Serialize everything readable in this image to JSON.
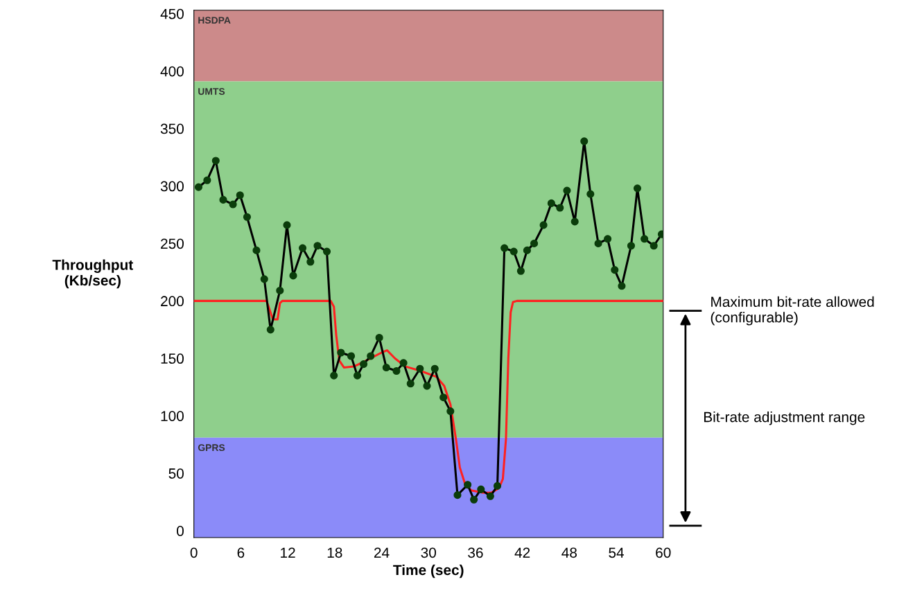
{
  "chart_data": {
    "type": "line",
    "xlabel": "Time (sec)",
    "ylabel": "Throughput\n(Kb/sec)",
    "xlim": [
      0,
      60
    ],
    "xticks": [
      0,
      6,
      12,
      18,
      24,
      30,
      36,
      42,
      48,
      54,
      60
    ],
    "ylim": [
      -6,
      453
    ],
    "yticks": [
      0,
      50,
      100,
      150,
      200,
      250,
      300,
      350,
      400,
      450
    ],
    "grid": false,
    "bands": [
      {
        "axis": "y",
        "from": 391,
        "to": 453,
        "label": "HSDPA",
        "color": "#cc8a8a"
      },
      {
        "axis": "y",
        "from": 81,
        "to": 391,
        "label": "UMTS",
        "color": "#8fcf8c"
      },
      {
        "axis": "y",
        "from": -6,
        "to": 81,
        "label": "GPRS",
        "color": "#8b8bf9"
      }
    ],
    "series": [
      {
        "color": "#000000",
        "marker": "circle",
        "line_style": "solid",
        "x": [
          0.6,
          1.7,
          2.8,
          3.75,
          5.0,
          5.9,
          6.8,
          8.0,
          9.0,
          9.8,
          11.0,
          11.9,
          12.7,
          13.9,
          14.9,
          15.8,
          17.0,
          17.9,
          18.8,
          20.1,
          20.9,
          21.7,
          22.6,
          23.7,
          24.6,
          25.9,
          26.8,
          27.7,
          28.9,
          29.8,
          30.8,
          31.9,
          32.8,
          33.7,
          35.0,
          35.8,
          36.7,
          37.9,
          38.8,
          39.7,
          40.9,
          41.8,
          42.6,
          43.5,
          44.7,
          45.7,
          46.8,
          47.7,
          48.7,
          49.9,
          50.7,
          51.7,
          52.9,
          53.8,
          54.7,
          55.9,
          56.7,
          57.6,
          58.8,
          59.8
        ],
        "values": [
          299,
          305,
          322,
          288,
          284,
          292,
          273,
          244,
          219,
          175,
          209,
          266,
          222,
          246,
          234,
          248,
          243,
          135,
          155,
          152,
          135,
          145,
          152,
          168,
          142,
          139,
          146,
          128,
          141,
          126,
          141,
          116,
          104,
          31,
          40,
          27,
          36,
          30,
          39,
          246,
          243,
          226,
          244,
          250,
          266,
          285,
          281,
          296,
          269,
          339,
          293,
          250,
          254,
          227,
          213,
          248,
          298,
          254,
          248,
          258
        ]
      },
      {
        "color": "#ff2020",
        "marker": "none",
        "line_style": "solid",
        "x": [
          0,
          9.3,
          9.8,
          10.1,
          10.7,
          11.0,
          11.3,
          17.5,
          17.9,
          18.2,
          18.6,
          19.2,
          20.5,
          22,
          24,
          24.7,
          25.7,
          27,
          29,
          31,
          32,
          32.8,
          33.5,
          34,
          34.7,
          35.5,
          37,
          38,
          39,
          39.5,
          39.9,
          40.2,
          40.5,
          40.8,
          41.3,
          60
        ],
        "values": [
          200,
          200,
          190,
          184,
          184,
          198,
          200,
          200,
          195,
          170,
          148,
          142,
          143,
          148,
          155,
          157,
          150,
          143,
          139,
          134,
          126,
          110,
          80,
          55,
          40,
          35,
          33,
          33,
          37,
          45,
          80,
          150,
          190,
          199,
          200,
          200
        ]
      }
    ],
    "annotations": [
      "Maximum bit-rate allowed\n(configurable)",
      "Bit-rate adjustment range"
    ]
  }
}
